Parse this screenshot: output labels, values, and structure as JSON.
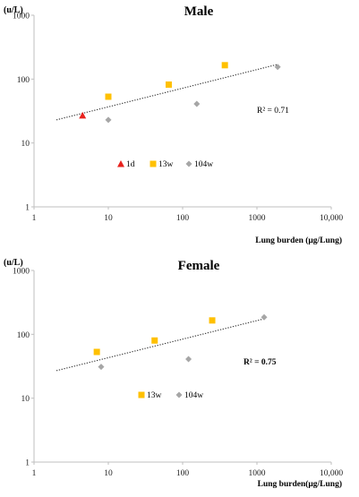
{
  "chart_data": [
    {
      "type": "scatter",
      "title": "Male",
      "ylabel": "(u/L)",
      "xlabel": "Lung burden  (μg/Lung)",
      "x_scale": "log",
      "y_scale": "log",
      "xlim": [
        1,
        10000
      ],
      "ylim": [
        1,
        1000
      ],
      "x_ticks": [
        "1",
        "10",
        "100",
        "1000",
        "10,000"
      ],
      "y_ticks": [
        "1",
        "10",
        "100",
        "1000"
      ],
      "grid": false,
      "legend": "inside-lower-middle",
      "series": [
        {
          "name": "1d",
          "marker": "triangle",
          "color": "#e8231e",
          "points": [
            [
              4.5,
              27
            ]
          ]
        },
        {
          "name": "13w",
          "marker": "square",
          "color": "#ffc000",
          "points": [
            [
              10,
              53
            ],
            [
              65,
              82
            ],
            [
              370,
              165
            ]
          ]
        },
        {
          "name": "104w",
          "marker": "diamond",
          "color": "#a6a6a6",
          "points": [
            [
              10,
              23
            ],
            [
              155,
              41
            ],
            [
              1900,
              155
            ]
          ]
        }
      ],
      "trendline": {
        "style": "dotted",
        "x": [
          2,
          1900
        ],
        "y": [
          23,
          170
        ]
      },
      "annotation": {
        "text": "R² = 0.71",
        "bold": false
      }
    },
    {
      "type": "scatter",
      "title": "Female",
      "ylabel": "(u/L)",
      "xlabel": "Lung burden(μg/Lung)",
      "x_scale": "log",
      "y_scale": "log",
      "xlim": [
        1,
        10000
      ],
      "ylim": [
        1,
        1000
      ],
      "x_ticks": [
        "1",
        "10",
        "100",
        "1000",
        "10,000"
      ],
      "y_ticks": [
        "1",
        "10",
        "100",
        "1000"
      ],
      "grid": false,
      "legend": "inside-lower-middle",
      "series": [
        {
          "name": "13w",
          "marker": "square",
          "color": "#ffc000",
          "points": [
            [
              7,
              53
            ],
            [
              42,
              80
            ],
            [
              250,
              165
            ]
          ]
        },
        {
          "name": "104w",
          "marker": "diamond",
          "color": "#a6a6a6",
          "points": [
            [
              8,
              31
            ],
            [
              120,
              41
            ],
            [
              1250,
              185
            ]
          ]
        }
      ],
      "trendline": {
        "style": "dotted",
        "x": [
          2,
          1250
        ],
        "y": [
          27,
          175
        ]
      },
      "annotation": {
        "text": "R² = 0.75",
        "bold": true
      }
    }
  ]
}
